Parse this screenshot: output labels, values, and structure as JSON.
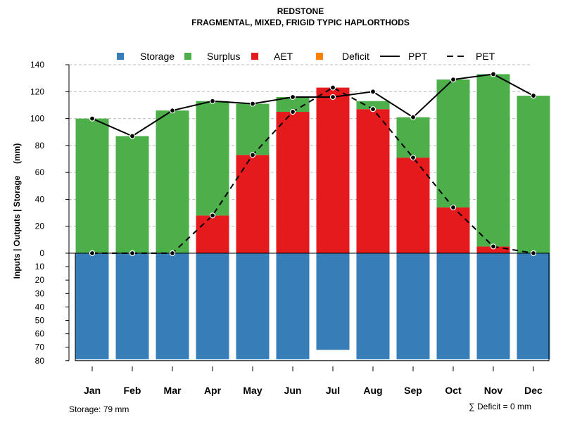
{
  "chart_data": {
    "type": "bar",
    "title": "REDSTONE",
    "subtitle": "FRAGMENTAL, MIXED, FRIGID TYPIC HAPLORTHODS",
    "ylabel": "Inputs | Outputs | Storage     (mm)",
    "categories": [
      "Jan",
      "Feb",
      "Mar",
      "Apr",
      "May",
      "Jun",
      "Jul",
      "Aug",
      "Sep",
      "Oct",
      "Nov",
      "Dec"
    ],
    "ylim_top": [
      0,
      140
    ],
    "ylim_bottom": [
      0,
      80
    ],
    "yticks_top": [
      "0",
      "20",
      "40",
      "60",
      "80",
      "100",
      "120",
      "140"
    ],
    "yticks_bottom": [
      "10",
      "20",
      "30",
      "40",
      "50",
      "60",
      "70",
      "80"
    ],
    "series": [
      {
        "name": "Storage",
        "color": "#377EB8",
        "values": [
          79,
          79,
          79,
          79,
          79,
          79,
          72,
          79,
          79,
          79,
          79,
          79
        ]
      },
      {
        "name": "Surplus",
        "color": "#4DAF4A",
        "values": [
          100,
          87,
          106,
          85,
          38,
          11,
          0,
          6,
          30,
          95,
          128,
          117
        ]
      },
      {
        "name": "AET",
        "color": "#E41A1C",
        "values": [
          0,
          0,
          0,
          28,
          73,
          105,
          123,
          107,
          71,
          34,
          5,
          0
        ]
      },
      {
        "name": "Deficit",
        "color": "#FF7F00",
        "values": [
          0,
          0,
          0,
          0,
          0,
          0,
          0,
          0,
          0,
          0,
          0,
          0
        ]
      },
      {
        "name": "PPT",
        "color": "#000000",
        "line": "solid",
        "values": [
          100,
          87,
          106,
          113,
          111,
          116,
          116,
          120,
          101,
          129,
          133,
          117
        ]
      },
      {
        "name": "PET",
        "color": "#000000",
        "line": "dashed",
        "values": [
          0,
          0,
          0,
          28,
          73,
          105,
          123,
          107,
          71,
          34,
          5,
          0
        ]
      }
    ],
    "legend": [
      "Storage",
      "Surplus",
      "AET",
      "Deficit",
      "PPT",
      "PET"
    ],
    "legend_position": "top",
    "grid": true,
    "annotations": {
      "storage_note": "Storage: 79 mm",
      "deficit_note": "∑ Deficit = 0 mm"
    }
  }
}
